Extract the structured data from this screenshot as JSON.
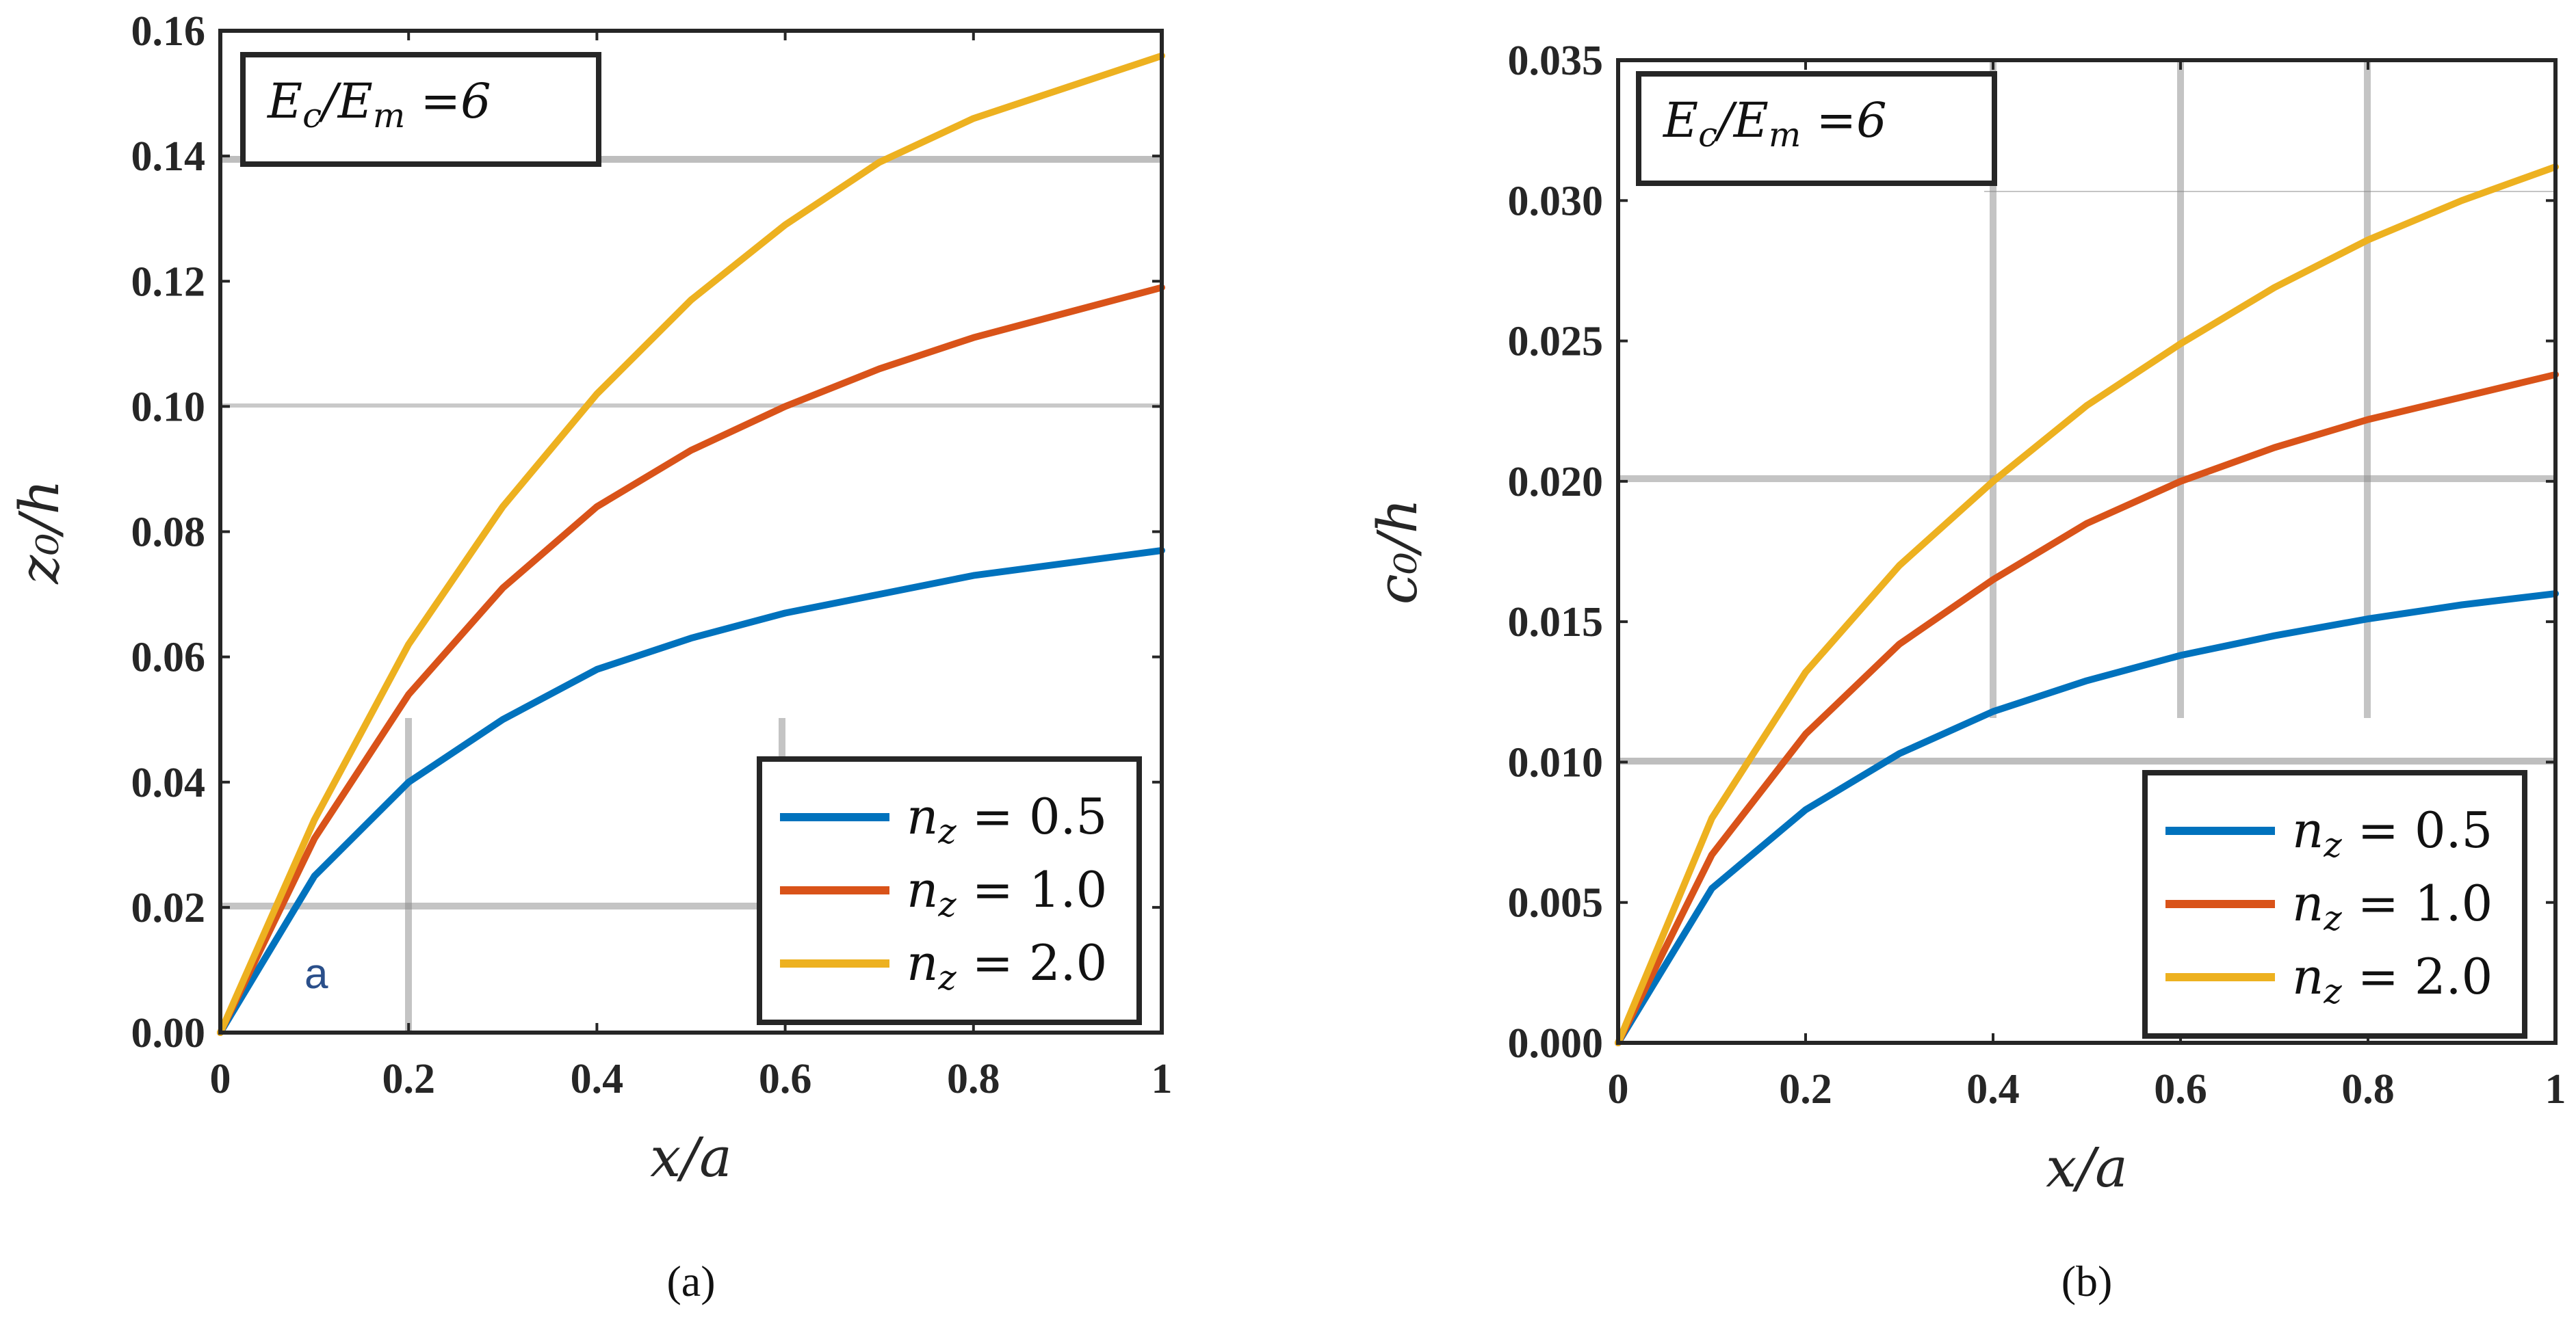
{
  "chart_data": [
    {
      "id": "a",
      "type": "line",
      "caption": "(a)",
      "xlabel": "x/a",
      "ylabel": "z₀/h",
      "xlim": [
        0,
        1
      ],
      "ylim": [
        0,
        0.16
      ],
      "xticks": [
        0,
        0.2,
        0.4,
        0.6,
        0.8,
        1
      ],
      "xtick_labels": [
        "0",
        "0.2",
        "0.4",
        "0.6",
        "0.8",
        "1"
      ],
      "yticks": [
        0,
        0.02,
        0.04,
        0.06,
        0.08,
        0.1,
        0.12,
        0.14,
        0.16
      ],
      "ytick_labels": [
        "0.00",
        "0.02",
        "0.04",
        "0.06",
        "0.08",
        "0.10",
        "0.12",
        "0.14",
        "0.16"
      ],
      "annotation_box": "Ec/Em =6",
      "annotation_text": "a",
      "legend_position": "bottom-right",
      "x": [
        0,
        0.1,
        0.2,
        0.3,
        0.4,
        0.5,
        0.6,
        0.7,
        0.8,
        0.9,
        1.0
      ],
      "series": [
        {
          "name": "nz = 0.5",
          "color": "#0072BD",
          "values": [
            0,
            0.025,
            0.04,
            0.05,
            0.058,
            0.063,
            0.067,
            0.07,
            0.073,
            0.075,
            0.077
          ]
        },
        {
          "name": "nz = 1.0",
          "color": "#D95319",
          "values": [
            0,
            0.031,
            0.054,
            0.071,
            0.084,
            0.093,
            0.1,
            0.106,
            0.111,
            0.115,
            0.119
          ]
        },
        {
          "name": "nz = 2.0",
          "color": "#EDB120",
          "values": [
            0,
            0.034,
            0.062,
            0.084,
            0.102,
            0.117,
            0.129,
            0.139,
            0.146,
            0.151,
            0.156
          ]
        }
      ]
    },
    {
      "id": "b",
      "type": "line",
      "caption": "(b)",
      "xlabel": "x/a",
      "ylabel": "c₀/h",
      "xlim": [
        0,
        1
      ],
      "ylim": [
        0,
        0.035
      ],
      "xticks": [
        0,
        0.2,
        0.4,
        0.6,
        0.8,
        1
      ],
      "xtick_labels": [
        "0",
        "0.2",
        "0.4",
        "0.6",
        "0.8",
        "1"
      ],
      "yticks": [
        0,
        0.005,
        0.01,
        0.015,
        0.02,
        0.025,
        0.03,
        0.035
      ],
      "ytick_labels": [
        "0.000",
        "0.005",
        "0.010",
        "0.015",
        "0.020",
        "0.025",
        "0.030",
        "0.035"
      ],
      "annotation_box": "Ec/Em =6",
      "annotation_text": "",
      "legend_position": "bottom-right",
      "x": [
        0,
        0.1,
        0.2,
        0.3,
        0.4,
        0.5,
        0.6,
        0.7,
        0.8,
        0.9,
        1.0
      ],
      "series": [
        {
          "name": "nz = 0.5",
          "color": "#0072BD",
          "values": [
            0,
            0.0055,
            0.0083,
            0.0103,
            0.0118,
            0.0129,
            0.0138,
            0.0145,
            0.0151,
            0.0156,
            0.016
          ]
        },
        {
          "name": "nz = 1.0",
          "color": "#D95319",
          "values": [
            0,
            0.0067,
            0.011,
            0.0142,
            0.0165,
            0.0185,
            0.02,
            0.0212,
            0.0222,
            0.023,
            0.0238
          ]
        },
        {
          "name": "nz = 2.0",
          "color": "#EDB120",
          "values": [
            0,
            0.008,
            0.0132,
            0.017,
            0.02,
            0.0227,
            0.0249,
            0.0269,
            0.0286,
            0.03,
            0.0312
          ]
        }
      ]
    }
  ]
}
